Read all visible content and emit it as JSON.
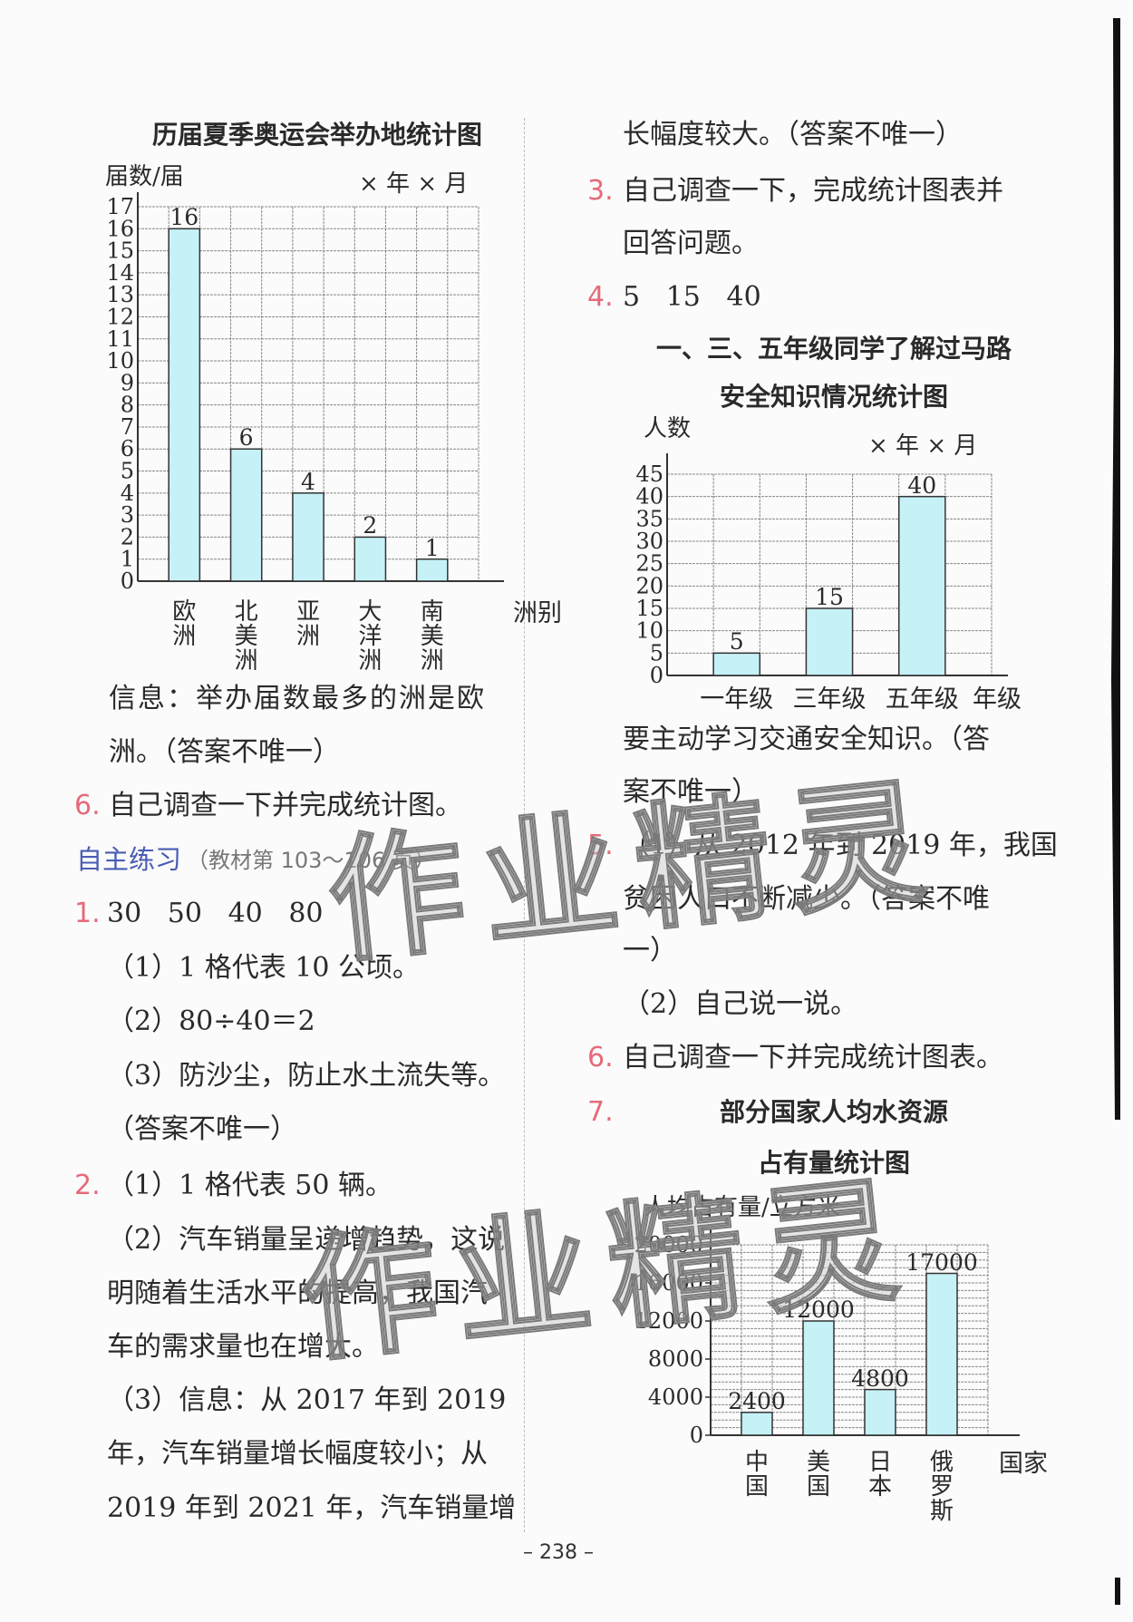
{
  "page_number": "– 238 –",
  "watermark": "作业精灵",
  "colors": {
    "accent_number": "#e66a7a",
    "heading_blue": "#4a5cb4",
    "bar_fill": "#c6f1f7",
    "bar_stroke": "#333333"
  },
  "left": {
    "chart1_title": "历届夏季奥运会举办地统计图",
    "chart1_ylabel": "届数/届",
    "chart1_date": "× 年 × 月",
    "info_line1": "信息：举办届数最多的洲是欧",
    "info_line2": "洲。（答案不唯一）",
    "q6_num": "6.",
    "q6_text": "自己调查一下并完成统计图。",
    "section_heading": "自主练习",
    "section_note": "（教材第 103～106 页）",
    "q1_num": "1.",
    "q1_text": "30   50   40   80",
    "q1_a": "（1）1 格代表 10 公顷。",
    "q1_b": "（2）80÷40＝2",
    "q1_c": "（3）防沙尘，防止水土流失等。",
    "q1_d": "（答案不唯一）",
    "q2_num": "2.",
    "q2_a": "（1）1 格代表 50 辆。",
    "q2_b1": "（2）汽车销量呈递增趋势，这说",
    "q2_b2": "明随着生活水平的提高，我国汽",
    "q2_b3": "车的需求量也在增大。",
    "q2_c1": "（3）信息：从 2017 年到 2019",
    "q2_c2": "年，汽车销量增长幅度较小；从",
    "q2_c3": "2019 年到 2021 年，汽车销量增"
  },
  "right": {
    "cont_line": "长幅度较大。（答案不唯一）",
    "q3_num": "3.",
    "q3_l1": "自己调查一下，完成统计图表并",
    "q3_l2": "回答问题。",
    "q4_num": "4.",
    "q4_text": "5   15   40",
    "chart2_title1": "一、三、五年级同学了解过马路",
    "chart2_title2": "安全知识情况统计图",
    "chart2_ylabel": "人数",
    "chart2_date": "× 年 × 月",
    "after_chart2_l1": "要主动学习交通安全知识。（答",
    "after_chart2_l2": "案不唯一）",
    "q5_num": "5.",
    "q5_l1": "（1）从 2012 年到 2019 年，我国",
    "q5_l2": "贫困人口不断减少。（答案不唯",
    "q5_l3": "一）",
    "q5_l4": "（2）自己说一说。",
    "q6_num": "6.",
    "q6_text": "自己调查一下并完成统计图表。",
    "q7_num": "7.",
    "chart3_title1": "部分国家人均水资源",
    "chart3_title2": "占有量统计图",
    "chart3_ylabel": "人均占有量/立方米"
  },
  "chart_data": [
    {
      "type": "bar",
      "title": "历届夏季奥运会举办地统计图",
      "ylabel": "届数/届",
      "xlabel": "洲别",
      "categories": [
        "欧洲",
        "北美洲",
        "亚洲",
        "大洋洲",
        "南美洲"
      ],
      "values": [
        16,
        6,
        4,
        2,
        1
      ],
      "ylim": [
        0,
        17
      ],
      "yticks": [
        "0",
        "1",
        "2",
        "3",
        "4",
        "5",
        "6",
        "7",
        "8",
        "9",
        "10",
        "11",
        "12",
        "13",
        "14",
        "15",
        "16",
        "17"
      ],
      "grid": true
    },
    {
      "type": "bar",
      "title": "一、三、五年级同学了解过马路安全知识情况统计图",
      "ylabel": "人数",
      "xlabel": "年级",
      "categories": [
        "一年级",
        "三年级",
        "五年级"
      ],
      "values": [
        5,
        15,
        40
      ],
      "ylim": [
        0,
        45
      ],
      "yticks": [
        "0",
        "5",
        "10",
        "15",
        "20",
        "25",
        "30",
        "35",
        "40",
        "45"
      ],
      "grid": true
    },
    {
      "type": "bar",
      "title": "部分国家人均水资源占有量统计图",
      "ylabel": "人均占有量/立方米",
      "xlabel": "国家",
      "categories": [
        "中国",
        "美国",
        "日本",
        "俄罗斯"
      ],
      "values": [
        2400,
        12000,
        4800,
        17000
      ],
      "ylim": [
        0,
        20000
      ],
      "yticks": [
        "0",
        "4000",
        "8000",
        "12000",
        "16000",
        "20000"
      ],
      "grid": true
    }
  ]
}
